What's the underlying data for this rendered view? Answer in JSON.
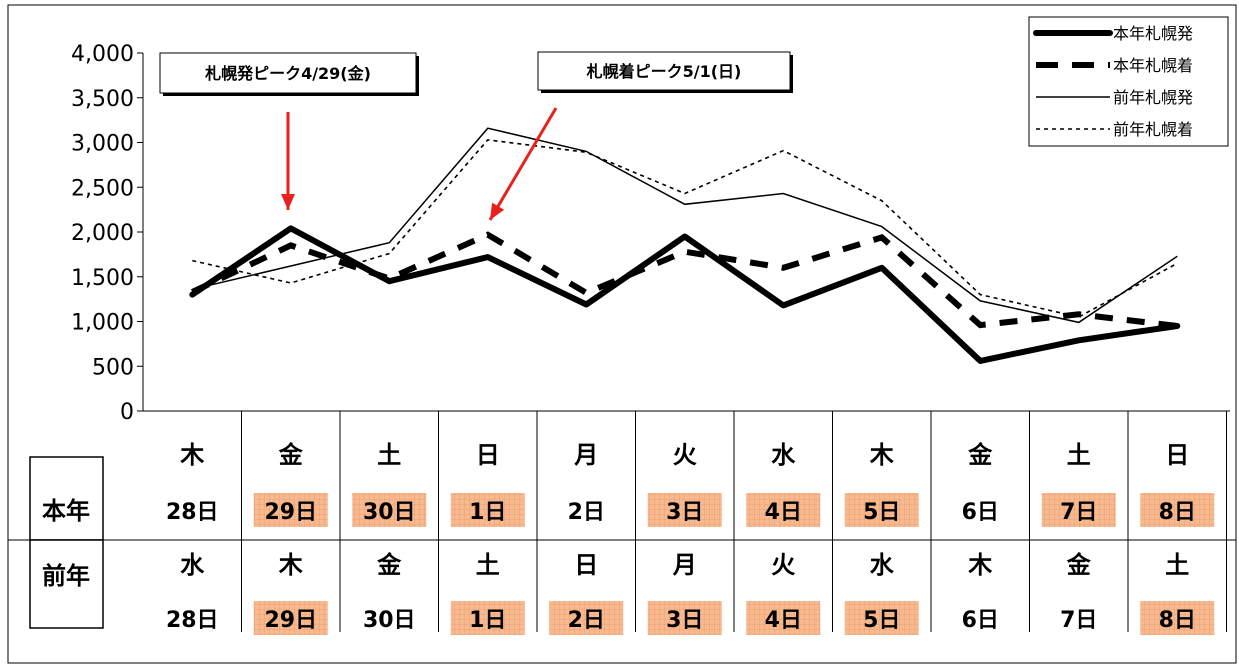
{
  "chart_data": {
    "type": "line",
    "ylim": [
      0,
      4000
    ],
    "yticks": [
      "4,000",
      "3,500",
      "3,000",
      "2,500",
      "2,000",
      "1,500",
      "1,000",
      "500",
      "0"
    ],
    "ytick_values": [
      4000,
      3500,
      3000,
      2500,
      2000,
      1500,
      1000,
      500,
      0
    ],
    "series": [
      {
        "name": "本年札幌発",
        "values": [
          1300,
          2040,
          1450,
          1720,
          1190,
          1950,
          1180,
          1600,
          560,
          790,
          950
        ],
        "style": "thick-solid",
        "color": "#000000"
      },
      {
        "name": "本年札幌着",
        "values": [
          1330,
          1850,
          1480,
          1970,
          1320,
          1780,
          1600,
          1940,
          960,
          1080,
          950
        ],
        "style": "thick-dash",
        "color": "#000000"
      },
      {
        "name": "前年札幌発",
        "values": [
          1360,
          1620,
          1880,
          3160,
          2900,
          2310,
          2430,
          2060,
          1230,
          990,
          1730
        ],
        "style": "thin-solid",
        "color": "#000000"
      },
      {
        "name": "前年札幌着",
        "values": [
          1680,
          1430,
          1760,
          3030,
          2890,
          2430,
          2910,
          2350,
          1300,
          1050,
          1650
        ],
        "style": "thin-dot",
        "color": "#000000"
      }
    ],
    "legend_position": "top-right",
    "annotations": [
      {
        "text": "札幌発ピーク4/29(金)",
        "category_index": 1
      },
      {
        "text": "札幌着ピーク5/1(日)",
        "category_index": 3
      }
    ],
    "table": {
      "rows": [
        {
          "label": "本年",
          "days": [
            "木",
            "金",
            "土",
            "日",
            "月",
            "火",
            "水",
            "木",
            "金",
            "土",
            "日"
          ],
          "dates": [
            "28日",
            "29日",
            "30日",
            "1日",
            "2日",
            "3日",
            "4日",
            "5日",
            "6日",
            "7日",
            "8日"
          ],
          "holiday": [
            false,
            true,
            true,
            true,
            false,
            true,
            true,
            true,
            false,
            true,
            true
          ]
        },
        {
          "label": "前年",
          "days": [
            "水",
            "木",
            "金",
            "土",
            "日",
            "月",
            "火",
            "水",
            "木",
            "金",
            "土"
          ],
          "dates": [
            "28日",
            "29日",
            "30日",
            "1日",
            "2日",
            "3日",
            "4日",
            "5日",
            "6日",
            "7日",
            "8日"
          ],
          "holiday": [
            false,
            true,
            false,
            true,
            true,
            true,
            true,
            true,
            false,
            false,
            true
          ]
        }
      ]
    },
    "colors": {
      "holiday_fill": "#f7b98f",
      "annotation_arrow": "#e8211d"
    }
  }
}
